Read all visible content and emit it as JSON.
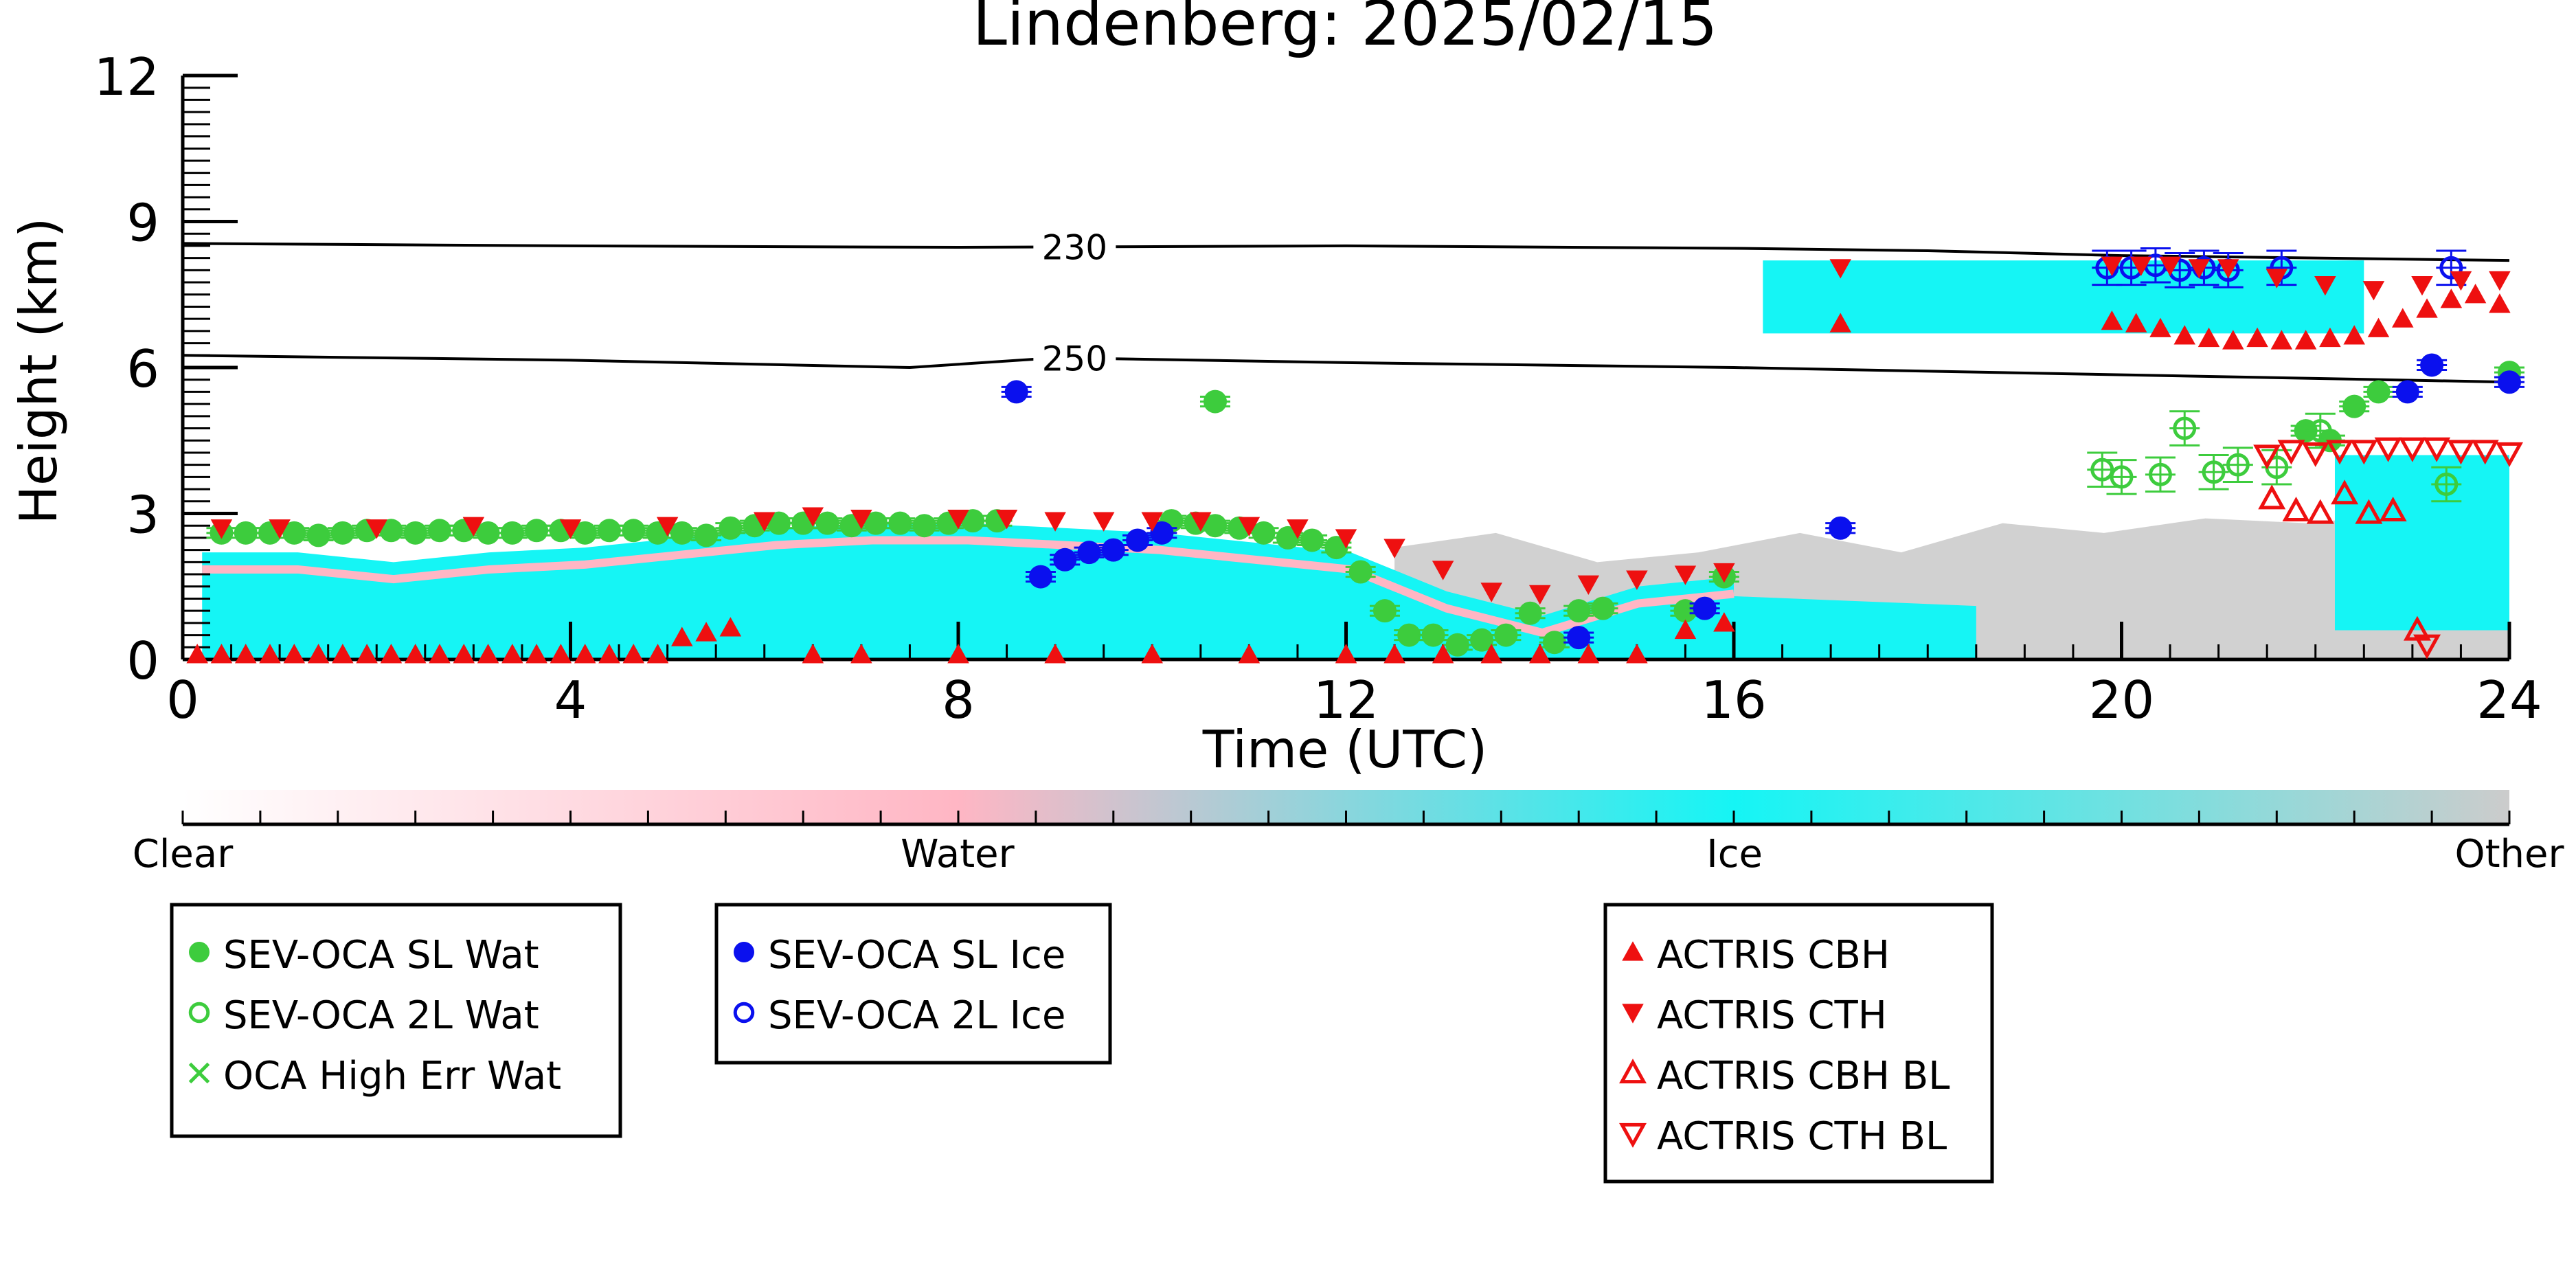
{
  "chart_data": {
    "type": "scatter",
    "title": "Lindenberg: 2025/02/15",
    "xlabel": "Time (UTC)",
    "ylabel": "Height (km)",
    "xlim": [
      0,
      24
    ],
    "ylim": [
      0,
      12
    ],
    "x_ticks": [
      0,
      4,
      8,
      12,
      16,
      20,
      24
    ],
    "y_ticks": [
      0,
      3,
      6,
      9,
      12
    ],
    "colors": {
      "sl_wat": "#3dcc3d",
      "sl_ice": "#0a10ee",
      "actris": "#ee1010",
      "bg_ice": "#15f5f5",
      "bg_water": "#ffb6c4",
      "bg_other": "#cccccc",
      "contour": "#000000"
    },
    "contours": [
      {
        "label": "230",
        "label_x": 9.2,
        "x": [
          0,
          4,
          8,
          12,
          16,
          18,
          20,
          22,
          24
        ],
        "y": [
          8.55,
          8.5,
          8.47,
          8.5,
          8.45,
          8.4,
          8.3,
          8.25,
          8.2
        ]
      },
      {
        "label": "250",
        "label_x": 9.2,
        "x": [
          0,
          4,
          7.5,
          9,
          12,
          16,
          20,
          24
        ],
        "y": [
          6.25,
          6.15,
          6.0,
          6.2,
          6.1,
          6.0,
          5.85,
          5.7
        ]
      }
    ],
    "colorbar": {
      "labels": [
        "Clear",
        "Water",
        "Ice",
        "Other"
      ],
      "positions": [
        0,
        0.333,
        0.667,
        1.0
      ]
    },
    "background_regions": [
      {
        "class": "Ice",
        "x": [
          0.2,
          16
        ],
        "top": [
          2.2,
          2.2,
          2.0,
          2.2,
          2.3,
          2.5,
          2.7,
          2.8,
          2.8,
          2.7,
          2.6,
          2.4,
          2.2,
          1.4,
          0.9,
          1.5,
          1.7
        ],
        "color": "ice"
      },
      {
        "class": "Ice",
        "x": [
          16,
          18.5
        ],
        "top": [
          1.3,
          1.2,
          1.1
        ],
        "color": "ice"
      },
      {
        "class": "Ice",
        "x": [
          16.3,
          22.5
        ],
        "band": [
          6.7,
          8.2
        ],
        "color": "ice"
      },
      {
        "class": "Ice",
        "x": [
          22.2,
          24
        ],
        "band": [
          0.6,
          4.2
        ],
        "color": "ice"
      },
      {
        "class": "Other",
        "x": [
          12.5,
          24
        ],
        "top": [
          2.3,
          2.6,
          2.0,
          2.2,
          2.6,
          2.2,
          2.8,
          2.6,
          2.9,
          2.8,
          3.0,
          2.9
        ],
        "color": "other"
      }
    ],
    "series": [
      {
        "name": "SEV-OCA SL Wat",
        "marker": "filled-circle",
        "color": "#3dcc3d",
        "x": [
          0.4,
          0.65,
          0.9,
          1.15,
          1.4,
          1.65,
          1.9,
          2.15,
          2.4,
          2.65,
          2.9,
          3.15,
          3.4,
          3.65,
          3.9,
          4.15,
          4.4,
          4.65,
          4.9,
          5.15,
          5.4,
          5.65,
          5.9,
          6.15,
          6.4,
          6.65,
          6.9,
          7.15,
          7.4,
          7.65,
          7.9,
          8.15,
          8.4,
          10.2,
          10.45,
          10.65,
          10.9,
          11.15,
          11.4,
          11.65,
          11.9,
          12.15,
          12.4,
          12.65,
          12.9,
          13.15,
          13.4,
          13.65,
          13.9,
          14.15,
          14.4,
          14.65,
          15.5,
          15.9,
          10.65,
          21.9,
          22.15,
          22.4,
          22.65,
          24.0
        ],
        "y": [
          2.6,
          2.6,
          2.6,
          2.6,
          2.55,
          2.6,
          2.65,
          2.65,
          2.6,
          2.65,
          2.65,
          2.6,
          2.6,
          2.65,
          2.65,
          2.6,
          2.65,
          2.65,
          2.6,
          2.6,
          2.55,
          2.7,
          2.75,
          2.8,
          2.8,
          2.8,
          2.75,
          2.8,
          2.8,
          2.75,
          2.8,
          2.85,
          2.85,
          2.85,
          2.8,
          2.75,
          2.7,
          2.6,
          2.5,
          2.45,
          2.3,
          1.8,
          1.0,
          0.5,
          0.5,
          0.3,
          0.4,
          0.5,
          0.95,
          0.35,
          1.0,
          1.05,
          1.0,
          1.7,
          5.3,
          4.7,
          4.5,
          5.2,
          5.5,
          5.9
        ]
      },
      {
        "name": "SEV-OCA 2L Wat",
        "marker": "open-circle",
        "color": "#3dcc3d",
        "x": [
          19.8,
          20.0,
          20.4,
          20.65,
          20.95,
          21.2,
          21.6,
          22.05,
          23.35
        ],
        "y": [
          3.9,
          3.75,
          3.8,
          4.75,
          3.85,
          4.0,
          3.95,
          4.7,
          3.6
        ]
      },
      {
        "name": "OCA High Err Wat",
        "marker": "x",
        "color": "#3dcc3d",
        "x": [],
        "y": []
      },
      {
        "name": "SEV-OCA SL Ice",
        "marker": "filled-circle",
        "color": "#0a10ee",
        "x": [
          8.6,
          8.85,
          9.1,
          9.35,
          9.6,
          9.85,
          10.1,
          14.4,
          15.7,
          17.1,
          22.95,
          23.2,
          24.0
        ],
        "y": [
          5.5,
          1.7,
          2.05,
          2.2,
          2.25,
          2.45,
          2.6,
          0.45,
          1.05,
          2.7,
          5.5,
          6.05,
          5.7
        ]
      },
      {
        "name": "SEV-OCA 2L Ice",
        "marker": "open-circle",
        "color": "#0a10ee",
        "x": [
          19.85,
          20.1,
          20.35,
          20.6,
          20.85,
          21.1,
          21.65,
          23.4
        ],
        "y": [
          8.05,
          8.05,
          8.1,
          8.0,
          8.05,
          8.0,
          8.05,
          8.05
        ]
      },
      {
        "name": "ACTRIS CBH",
        "marker": "up-triangle",
        "color": "#ee1010",
        "x": [
          0.15,
          0.4,
          0.65,
          0.9,
          1.15,
          1.4,
          1.65,
          1.9,
          2.15,
          2.4,
          2.65,
          2.9,
          3.15,
          3.4,
          3.65,
          3.9,
          4.15,
          4.4,
          4.65,
          4.9,
          5.15,
          5.4,
          5.65,
          6.5,
          7.0,
          8.0,
          9.0,
          10.0,
          11.0,
          12.0,
          12.5,
          13.0,
          13.5,
          14.0,
          14.5,
          15.0,
          15.5,
          15.9,
          17.1,
          19.9,
          20.15,
          20.4,
          20.65,
          20.9,
          21.15,
          21.4,
          21.65,
          21.9,
          22.15,
          22.4,
          22.65,
          22.9,
          23.15,
          23.4,
          23.65,
          23.9
        ],
        "y": [
          0.1,
          0.1,
          0.1,
          0.1,
          0.1,
          0.1,
          0.1,
          0.1,
          0.1,
          0.1,
          0.1,
          0.1,
          0.1,
          0.1,
          0.1,
          0.1,
          0.1,
          0.1,
          0.1,
          0.1,
          0.45,
          0.55,
          0.65,
          0.1,
          0.1,
          0.1,
          0.1,
          0.1,
          0.1,
          0.1,
          0.1,
          0.1,
          0.1,
          0.1,
          0.1,
          0.1,
          0.6,
          0.75,
          6.9,
          6.95,
          6.9,
          6.8,
          6.65,
          6.6,
          6.55,
          6.6,
          6.55,
          6.55,
          6.6,
          6.65,
          6.8,
          7.0,
          7.2,
          7.4,
          7.5,
          7.3
        ]
      },
      {
        "name": "ACTRIS CTH",
        "marker": "down-triangle",
        "color": "#ee1010",
        "x": [
          0.4,
          1.0,
          2.0,
          3.0,
          4.0,
          5.0,
          6.0,
          6.5,
          7.0,
          8.0,
          8.5,
          9.0,
          9.5,
          10.0,
          10.5,
          11.0,
          11.5,
          12.0,
          12.5,
          13.0,
          13.5,
          14.0,
          14.5,
          15.0,
          15.5,
          15.9,
          17.1,
          19.9,
          20.2,
          20.5,
          20.8,
          21.1,
          21.6,
          22.1,
          22.6,
          23.1,
          23.5,
          23.9
        ],
        "y": [
          2.7,
          2.7,
          2.7,
          2.75,
          2.7,
          2.75,
          2.85,
          2.95,
          2.9,
          2.9,
          2.9,
          2.85,
          2.85,
          2.85,
          2.85,
          2.75,
          2.7,
          2.5,
          2.3,
          1.85,
          1.4,
          1.35,
          1.55,
          1.65,
          1.75,
          1.8,
          8.05,
          8.1,
          8.1,
          8.1,
          8.05,
          8.05,
          7.85,
          7.7,
          7.6,
          7.7,
          7.8,
          7.8
        ]
      },
      {
        "name": "ACTRIS CBH BL",
        "marker": "open-up-triangle",
        "color": "#ee1010",
        "x": [
          21.55,
          21.8,
          22.05,
          22.3,
          22.55,
          22.8,
          23.05
        ],
        "y": [
          3.3,
          3.05,
          3.0,
          3.4,
          3.0,
          3.05,
          0.6
        ]
      },
      {
        "name": "ACTRIS CTH BL",
        "marker": "open-down-triangle",
        "color": "#ee1010",
        "x": [
          21.5,
          21.75,
          22.0,
          22.25,
          22.5,
          22.75,
          23.0,
          23.25,
          23.5,
          23.75,
          24.0,
          23.15
        ],
        "y": [
          4.2,
          4.3,
          4.25,
          4.3,
          4.3,
          4.35,
          4.35,
          4.35,
          4.3,
          4.3,
          4.25,
          0.3
        ]
      }
    ],
    "legend_groups": [
      [
        "SEV-OCA SL Wat",
        "SEV-OCA 2L Wat",
        "OCA High Err Wat"
      ],
      [
        "SEV-OCA SL Ice",
        "SEV-OCA 2L Ice"
      ],
      [
        "ACTRIS CBH",
        "ACTRIS CTH",
        "ACTRIS CBH BL",
        "ACTRIS CTH BL"
      ]
    ]
  }
}
